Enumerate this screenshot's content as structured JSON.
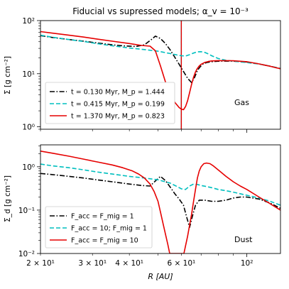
{
  "chart_data": [
    {
      "type": "line",
      "title": "Fiducial vs supressed models; α_v = 10⁻³",
      "xlabel": "",
      "ylabel": "Σ [g cm⁻²]",
      "xscale": "log",
      "yscale": "log",
      "xlim": [
        20,
        130
      ],
      "ylim": [
        0.9,
        100
      ],
      "x_ticklabels": [],
      "y_ticklabels": [
        {
          "value": 1,
          "label": "10⁰"
        },
        {
          "value": 10,
          "label": "10¹"
        },
        {
          "value": 100,
          "label": "10²"
        }
      ],
      "annotation": "Gas",
      "legend_location": "lower-left",
      "vline": {
        "x": 60,
        "colors": [
          "#000000",
          "#00bfbf",
          "#e60000"
        ]
      },
      "series": [
        {
          "name": "t = 0.130 Myr, M_p = 1.444",
          "color": "#000000",
          "dash": "dashdot",
          "x": [
            20,
            22,
            25,
            28,
            31,
            35,
            38,
            42,
            45,
            47.5,
            49,
            51,
            53,
            55,
            57,
            59,
            61,
            63,
            65,
            66.5,
            68,
            69.5,
            71,
            73,
            76,
            80,
            85,
            90,
            100,
            110,
            120,
            130
          ],
          "y": [
            52,
            48,
            44,
            41,
            38,
            35,
            33.5,
            32.5,
            35,
            44,
            51,
            46,
            37,
            28,
            20.5,
            15,
            11,
            8.2,
            6.8,
            8.5,
            11.5,
            13.5,
            15.2,
            16.2,
            16.8,
            17.2,
            17.3,
            17.2,
            16.6,
            15.3,
            13.8,
            12.4
          ]
        },
        {
          "name": "t = 0.415 Myr, M_p = 0.199",
          "color": "#00bfbf",
          "dash": "dashed",
          "x": [
            20,
            22,
            25,
            28,
            31,
            35,
            40,
            45,
            50,
            55,
            58,
            60,
            62,
            64,
            66,
            68,
            70,
            72,
            74,
            76,
            80,
            85,
            90,
            100,
            110,
            120,
            130
          ],
          "y": [
            53,
            48.5,
            44,
            40.5,
            37,
            33.5,
            30.5,
            28.5,
            26.5,
            24,
            22.5,
            21.8,
            21.5,
            22.8,
            24.5,
            25.8,
            26,
            25.2,
            23.6,
            21.8,
            19.3,
            17.9,
            17.2,
            16.2,
            15.2,
            13.9,
            12.6
          ]
        },
        {
          "name": "t = 1.370 Myr, M_p = 0.823",
          "color": "#e60000",
          "dash": "solid",
          "x": [
            20,
            22,
            25,
            28,
            31,
            35,
            40,
            44,
            47,
            49,
            51,
            53,
            55,
            57,
            59,
            60,
            61,
            62,
            63,
            64,
            65,
            66,
            67,
            68,
            69,
            70,
            72,
            74,
            76,
            80,
            85,
            90,
            100,
            110,
            120,
            130
          ],
          "y": [
            62,
            58,
            53,
            49,
            45,
            41,
            37,
            34,
            33,
            27,
            14,
            7,
            4.3,
            2.9,
            2.3,
            2.15,
            2.1,
            2.4,
            3.1,
            4.4,
            6.3,
            8.6,
            10.8,
            12.6,
            14,
            15,
            16.3,
            17,
            17.4,
            17.6,
            17.6,
            17.5,
            16.8,
            15.3,
            13.8,
            12.4
          ]
        }
      ]
    },
    {
      "type": "line",
      "xlabel": "R [AU]",
      "ylabel": "Σ_d [g cm⁻²]",
      "xscale": "log",
      "yscale": "log",
      "xlim": [
        20,
        130
      ],
      "ylim": [
        0.01,
        3.2
      ],
      "x_ticklabels": [
        {
          "value": 20,
          "label": "2 × 10¹"
        },
        {
          "value": 30,
          "label": "3 × 10¹"
        },
        {
          "value": 40,
          "label": "4 × 10¹"
        },
        {
          "value": 60,
          "label": "6 × 10¹"
        },
        {
          "value": 100,
          "label": "10²"
        }
      ],
      "y_ticklabels": [
        {
          "value": 0.01,
          "label": "10⁻²"
        },
        {
          "value": 0.1,
          "label": "10⁻¹"
        },
        {
          "value": 1,
          "label": "10⁰"
        }
      ],
      "annotation": "Dust",
      "legend_location": "lower-left",
      "series": [
        {
          "name": "F_acc = F_mig = 1",
          "color": "#000000",
          "dash": "dashdot",
          "x": [
            20,
            22,
            25,
            28,
            31,
            35,
            40,
            44,
            47,
            49,
            51,
            53,
            55,
            57,
            59,
            61,
            62.5,
            64,
            65.5,
            67,
            69,
            72,
            76,
            80,
            85,
            90,
            95,
            100,
            110,
            120,
            130
          ],
          "y": [
            0.7,
            0.66,
            0.6,
            0.55,
            0.5,
            0.45,
            0.4,
            0.37,
            0.36,
            0.47,
            0.6,
            0.48,
            0.34,
            0.24,
            0.18,
            0.13,
            0.07,
            0.04,
            0.075,
            0.13,
            0.17,
            0.17,
            0.16,
            0.16,
            0.17,
            0.19,
            0.2,
            0.2,
            0.18,
            0.145,
            0.11
          ]
        },
        {
          "name": "F_acc = 10; F_mig = 1",
          "color": "#00bfbf",
          "dash": "dashed",
          "x": [
            20,
            22,
            25,
            28,
            31,
            35,
            40,
            45,
            50,
            55,
            58,
            60,
            62,
            64,
            66,
            68,
            70,
            73,
            76,
            80,
            85,
            90,
            100,
            110,
            120,
            130
          ],
          "y": [
            1.15,
            1.05,
            0.95,
            0.85,
            0.76,
            0.68,
            0.6,
            0.55,
            0.5,
            0.42,
            0.35,
            0.31,
            0.3,
            0.36,
            0.4,
            0.39,
            0.37,
            0.35,
            0.33,
            0.3,
            0.28,
            0.26,
            0.22,
            0.19,
            0.16,
            0.13
          ]
        },
        {
          "name": "F_acc = F_mig = 10",
          "color": "#e60000",
          "dash": "solid",
          "x": [
            20,
            22,
            25,
            28,
            31,
            35,
            38,
            41,
            43,
            45,
            47,
            48.5,
            50,
            51,
            52,
            53,
            54,
            54.8,
            61.2,
            62,
            63,
            64,
            65,
            66,
            67,
            68,
            69,
            70,
            71.5,
            73,
            75,
            77,
            80,
            85,
            90,
            95,
            100,
            110,
            120,
            130
          ],
          "y": [
            2.3,
            2.05,
            1.75,
            1.5,
            1.3,
            1.1,
            0.95,
            0.8,
            0.68,
            0.55,
            0.4,
            0.27,
            0.16,
            0.09,
            0.05,
            0.028,
            0.016,
            0.01,
            0.01,
            0.015,
            0.025,
            0.045,
            0.08,
            0.16,
            0.3,
            0.55,
            0.8,
            1.0,
            1.18,
            1.22,
            1.18,
            1.05,
            0.85,
            0.6,
            0.45,
            0.36,
            0.3,
            0.2,
            0.14,
            0.1
          ]
        }
      ]
    }
  ]
}
